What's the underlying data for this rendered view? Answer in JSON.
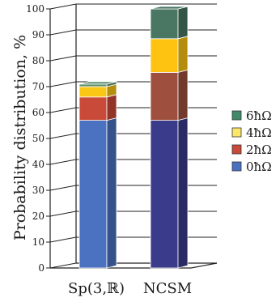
{
  "chart_data": {
    "type": "bar",
    "stacked": true,
    "three_d": true,
    "categories": [
      "Sp(3,ℝ)",
      "NCSM"
    ],
    "ylabel": "Probability distribution, %",
    "ylim": [
      0,
      100
    ],
    "yticks": [
      0,
      10,
      20,
      30,
      40,
      50,
      60,
      70,
      80,
      90,
      100
    ],
    "grid": true,
    "legend_position": "right",
    "series": [
      {
        "name": "0ħΩ",
        "values": [
          57,
          57
        ]
      },
      {
        "name": "2ħΩ",
        "values": [
          9,
          18.5
        ]
      },
      {
        "name": "4ħΩ",
        "values": [
          4,
          13
        ]
      },
      {
        "name": "6ħΩ",
        "values": [
          1,
          11.5
        ]
      }
    ],
    "colors": {
      "Sp(3,ℝ)": [
        "#4a72c0",
        "#c94a38",
        "#fbc716",
        "#5e8f6e"
      ],
      "NCSM": [
        "#3b3b8c",
        "#9f4f3e",
        "#fdc310",
        "#4a7763"
      ],
      "legend": [
        "#4a72c0",
        "#c94a38",
        "#fde76a",
        "#3f8a68"
      ]
    }
  }
}
